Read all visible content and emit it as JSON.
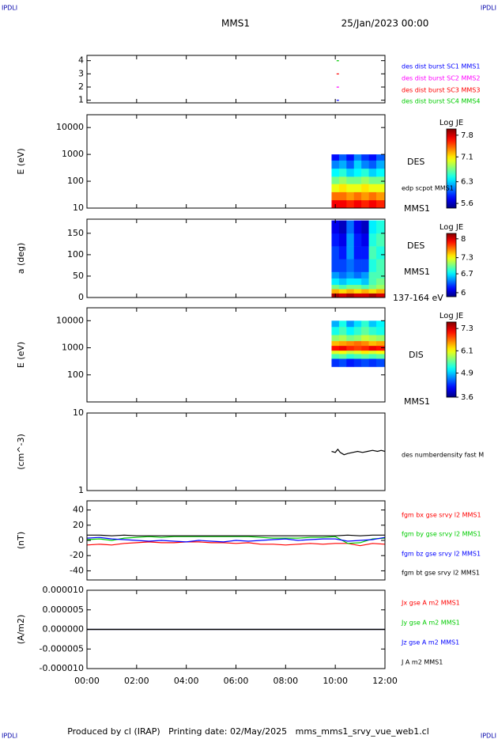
{
  "header": {
    "logo": "IPDLI",
    "title": "MMS1",
    "date": "25/Jan/2023 00:00"
  },
  "footer": "Produced by cl (IRAP)   Printing date: 02/May/2025   mms_mms1_srvy_vue_web1.cl",
  "chart_data": [
    {
      "type": "scatter",
      "xlim": [
        0,
        12
      ],
      "ylim": [
        0.8,
        4.4
      ],
      "yticks": [
        1,
        2,
        3,
        4
      ],
      "series": [
        {
          "name": "des dist burst SC1 MMS1",
          "color": "#0000ff",
          "x": [
            10.1
          ],
          "values": [
            1
          ]
        },
        {
          "name": "des dist burst SC2 MMS2",
          "color": "#ff00ff",
          "x": [
            10.1
          ],
          "values": [
            2
          ]
        },
        {
          "name": "des dist burst SC3 MMS3",
          "color": "#ff0000",
          "x": [
            10.1
          ],
          "values": [
            3
          ]
        },
        {
          "name": "des dist burst SC4 MMS4",
          "color": "#00cc00",
          "x": [
            10.1
          ],
          "values": [
            4
          ]
        }
      ]
    },
    {
      "type": "heatmap",
      "ylabel": "E (eV)",
      "log_y": true,
      "xlim": [
        0,
        12
      ],
      "ylim": [
        10,
        30000
      ],
      "yticks": [
        10,
        100,
        1000,
        10000
      ],
      "x_bins": [
        9.85,
        10.15,
        10.45,
        10.75,
        11.05,
        11.35,
        11.65,
        12
      ],
      "y_bins": [
        10,
        20,
        40,
        80,
        150,
        300,
        600,
        1000
      ],
      "z": [
        [
          7.7,
          7.7,
          7.6,
          7.7,
          7.6,
          7.7,
          7.6
        ],
        [
          7.4,
          7.4,
          7.3,
          7.4,
          7.3,
          7.4,
          7.3
        ],
        [
          7.0,
          7.1,
          7.0,
          7.0,
          7.1,
          7.0,
          7.0
        ],
        [
          6.7,
          6.8,
          6.7,
          6.7,
          6.8,
          6.7,
          6.7
        ],
        [
          6.4,
          6.5,
          6.3,
          6.4,
          6.5,
          6.3,
          6.4
        ],
        [
          6.1,
          6.2,
          6.0,
          6.3,
          6.1,
          6.0,
          6.2
        ],
        [
          5.8,
          6.0,
          5.8,
          6.1,
          5.9,
          5.8,
          6.0
        ]
      ],
      "colorbar_title": "Log JE",
      "clim": [
        5.45,
        8.0
      ],
      "cticks": [
        5.6,
        6.3,
        7.1,
        7.8
      ],
      "annotations": [
        "DES",
        "edp scpot MMS1",
        "MMS1"
      ]
    },
    {
      "type": "heatmap",
      "ylabel": "a (deg)",
      "xlim": [
        0,
        12
      ],
      "ylim": [
        0,
        183
      ],
      "yticks": [
        0,
        50,
        100,
        150
      ],
      "x_bins": [
        9.85,
        10.15,
        10.45,
        10.75,
        11.05,
        11.35,
        11.65,
        12
      ],
      "y_bins": [
        0,
        10,
        20,
        30,
        45,
        60,
        90,
        120,
        150,
        180
      ],
      "z": [
        [
          8.1,
          8.0,
          8.1,
          8.0,
          8.0,
          8.1,
          8.0
        ],
        [
          7.5,
          7.4,
          7.5,
          7.4,
          7.5,
          7.4,
          7.5
        ],
        [
          7.0,
          6.9,
          7.0,
          7.0,
          6.9,
          7.0,
          7.1
        ],
        [
          6.7,
          6.6,
          6.7,
          6.7,
          6.6,
          6.9,
          7.0
        ],
        [
          6.5,
          6.4,
          6.5,
          6.4,
          6.5,
          6.9,
          6.9
        ],
        [
          6.3,
          6.3,
          6.4,
          6.3,
          6.3,
          6.8,
          6.9
        ],
        [
          6.3,
          6.2,
          6.5,
          6.2,
          6.2,
          6.9,
          6.8
        ],
        [
          6.2,
          6.1,
          6.5,
          6.2,
          6.1,
          6.8,
          6.9
        ],
        [
          6.1,
          6.0,
          6.4,
          6.1,
          6.0,
          6.7,
          6.8
        ]
      ],
      "colorbar_title": "Log JE",
      "clim": [
        5.85,
        8.2
      ],
      "cticks": [
        6.0,
        6.7,
        7.3,
        8.0
      ],
      "annotations": [
        "DES",
        "MMS1",
        "137-164 eV"
      ]
    },
    {
      "type": "heatmap",
      "ylabel": "E (eV)",
      "log_y": true,
      "xlim": [
        0,
        12
      ],
      "ylim": [
        10,
        30000
      ],
      "yticks": [
        100,
        1000,
        10000
      ],
      "x_bins": [
        9.85,
        10.15,
        10.45,
        10.75,
        11.05,
        11.35,
        11.65,
        12
      ],
      "y_bins": [
        200,
        400,
        600,
        800,
        1200,
        1800,
        3000,
        6000,
        10000
      ],
      "z": [
        [
          4.3,
          4.4,
          4.2,
          4.3,
          4.4,
          4.3,
          4.4
        ],
        [
          5.4,
          5.5,
          5.3,
          5.4,
          5.5,
          5.4,
          5.5
        ],
        [
          6.0,
          6.1,
          5.9,
          6.0,
          6.2,
          6.0,
          6.1
        ],
        [
          7.1,
          7.2,
          7.0,
          6.9,
          7.0,
          7.2,
          7.1
        ],
        [
          6.4,
          6.5,
          6.6,
          6.7,
          6.6,
          6.4,
          6.5
        ],
        [
          5.7,
          5.8,
          5.6,
          5.7,
          5.9,
          5.8,
          5.7
        ],
        [
          5.2,
          5.4,
          5.1,
          5.3,
          5.5,
          5.3,
          5.2
        ],
        [
          4.8,
          5.2,
          4.7,
          5.0,
          5.3,
          4.9,
          5.1
        ]
      ],
      "colorbar_title": "Log JE",
      "clim": [
        3.6,
        7.65
      ],
      "cticks": [
        3.6,
        4.9,
        6.1,
        7.3
      ],
      "annotations": [
        "DIS",
        "MMS1"
      ]
    },
    {
      "type": "line",
      "ylabel": "(cm^-3)",
      "log_y": true,
      "xlim": [
        0,
        12
      ],
      "ylim": [
        1,
        10
      ],
      "yticks": [
        1,
        10
      ],
      "series": [
        {
          "name": "des numberdensity fast M",
          "color": "#000000",
          "x": [
            9.85,
            10.0,
            10.1,
            10.2,
            10.35,
            10.5,
            10.7,
            10.9,
            11.1,
            11.3,
            11.5,
            11.7,
            11.85,
            12
          ],
          "values": [
            3.2,
            3.1,
            3.4,
            3.1,
            2.9,
            3.0,
            3.1,
            3.2,
            3.1,
            3.2,
            3.3,
            3.2,
            3.3,
            3.2
          ]
        }
      ]
    },
    {
      "type": "line",
      "ylabel": "(nT)",
      "xlim": [
        0,
        12
      ],
      "ylim": [
        -52,
        52
      ],
      "yticks": [
        -40,
        -20,
        0,
        20,
        40
      ],
      "series": [
        {
          "name": "fgm bx gse srvy l2 MMS1",
          "color": "#ff0000",
          "x": [
            0,
            0.5,
            1,
            1.5,
            2,
            2.5,
            3,
            3.5,
            4,
            4.5,
            5,
            5.5,
            6,
            6.5,
            7,
            7.5,
            8,
            8.5,
            9,
            9.5,
            10,
            10.5,
            11,
            11.5,
            12
          ],
          "values": [
            -6,
            -5,
            -6,
            -4,
            -3,
            -2,
            -3,
            -3,
            -2,
            -2,
            -3,
            -3,
            -4,
            -3,
            -5,
            -5,
            -6,
            -5,
            -4,
            -5,
            -4,
            -4,
            -7,
            -4,
            -5
          ]
        },
        {
          "name": "fgm by gse srvy l2 MMS1",
          "color": "#00cc00",
          "x": [
            0,
            0.5,
            1,
            1.5,
            2,
            2.5,
            3,
            3.5,
            4,
            4.5,
            5,
            5.5,
            6,
            6.5,
            7,
            7.5,
            8,
            8.5,
            9,
            9.5,
            10,
            10.5,
            11,
            11.5,
            12
          ],
          "values": [
            1,
            2,
            0,
            3,
            4,
            5,
            4,
            5,
            5,
            5,
            5,
            5,
            5,
            5,
            4,
            3,
            3,
            3,
            4,
            4,
            5,
            -4,
            -3,
            2,
            3
          ]
        },
        {
          "name": "fgm bz gse srvy l2 MMS1",
          "color": "#0000ff",
          "x": [
            0,
            0.5,
            1,
            1.5,
            2,
            2.5,
            3,
            3.5,
            4,
            4.5,
            5,
            5.5,
            6,
            6.5,
            7,
            7.5,
            8,
            8.5,
            9,
            9.5,
            10,
            10.5,
            11,
            11.5,
            12
          ],
          "values": [
            3,
            4,
            2,
            1,
            0,
            -1,
            0,
            -1,
            -2,
            0,
            -1,
            -2,
            0,
            -1,
            0,
            1,
            2,
            0,
            1,
            2,
            2,
            -1,
            0,
            1,
            4
          ]
        },
        {
          "name": "fgm bt gse srvy l2 MMS1",
          "color": "#000000",
          "x": [
            0,
            0.5,
            1,
            1.5,
            2,
            2.5,
            3,
            3.5,
            4,
            4.5,
            5,
            5.5,
            6,
            6.5,
            7,
            7.5,
            8,
            8.5,
            9,
            9.5,
            10,
            10.5,
            11,
            11.5,
            12
          ],
          "values": [
            7,
            7,
            6,
            7,
            6,
            6,
            6,
            6,
            6,
            6,
            6,
            6,
            6,
            6,
            6,
            6,
            6,
            6,
            6,
            6,
            6,
            7,
            6,
            7,
            7
          ]
        }
      ]
    },
    {
      "type": "line",
      "ylabel": "(A/m2)",
      "xlim": [
        0,
        12
      ],
      "ylim": [
        -1e-05,
        1e-05
      ],
      "yticks": [
        {
          "value": -1e-05,
          "label": "-0.000010"
        },
        {
          "value": -5e-06,
          "label": "-0.000005"
        },
        {
          "value": 0,
          "label": "0.000000"
        },
        {
          "value": 5e-06,
          "label": "0.000005"
        },
        {
          "value": 1e-05,
          "label": "0.000010"
        }
      ],
      "xticks": [
        {
          "value": 0,
          "label": "00:00"
        },
        {
          "value": 2,
          "label": "02:00"
        },
        {
          "value": 4,
          "label": "04:00"
        },
        {
          "value": 6,
          "label": "06:00"
        },
        {
          "value": 8,
          "label": "08:00"
        },
        {
          "value": 10,
          "label": "10:00"
        },
        {
          "value": 12,
          "label": "12:00"
        }
      ],
      "series": [
        {
          "name": "Jx gse A m2 MMS1",
          "color": "#ff0000",
          "x": [
            0,
            1,
            2,
            3,
            4,
            5,
            6,
            7,
            8,
            9,
            10,
            11,
            12
          ],
          "values": [
            0,
            0,
            0,
            0,
            0,
            0,
            0,
            0,
            0,
            0,
            0,
            0,
            0
          ]
        },
        {
          "name": "Jy gse A m2 MMS1",
          "color": "#00cc00",
          "x": [
            0,
            1,
            2,
            3,
            4,
            5,
            6,
            7,
            8,
            9,
            10,
            11,
            12
          ],
          "values": [
            0,
            0,
            0,
            0,
            0,
            0,
            0,
            0,
            0,
            0,
            0,
            0,
            0
          ]
        },
        {
          "name": "Jz gse A m2 MMS1",
          "color": "#0000ff",
          "x": [
            0,
            1,
            2,
            3,
            4,
            5,
            6,
            7,
            8,
            9,
            10,
            11,
            12
          ],
          "values": [
            0,
            0,
            0,
            0,
            0,
            0,
            0,
            0,
            0,
            0,
            0,
            0,
            0
          ]
        },
        {
          "name": "J A m2 MMS1",
          "color": "#000000",
          "x": [
            0,
            1,
            2,
            3,
            4,
            5,
            6,
            7,
            8,
            9,
            10,
            11,
            12
          ],
          "values": [
            0,
            0,
            0,
            0,
            0,
            0,
            0,
            0,
            0,
            0,
            0,
            0,
            0
          ]
        }
      ]
    }
  ]
}
